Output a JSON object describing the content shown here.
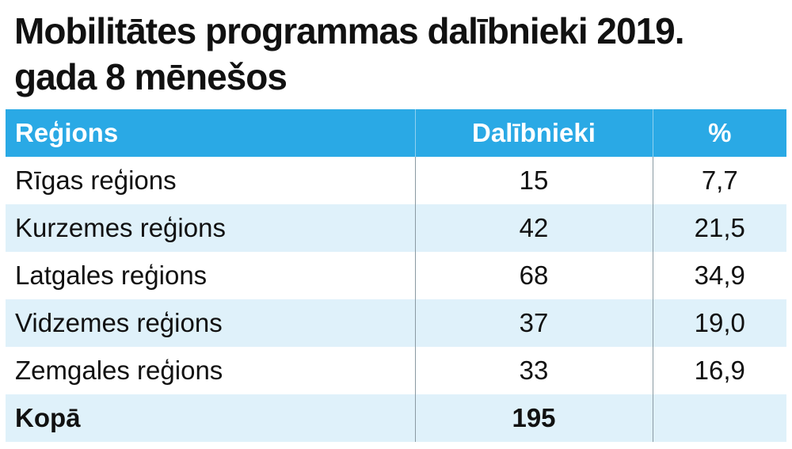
{
  "chart_data": {
    "type": "table",
    "title": "Mobilitātes programmas dalībnieki 2019. gada 8 mēnešos",
    "columns": [
      "Reģions",
      "Dalībnieki",
      "%"
    ],
    "rows": [
      {
        "region": "Rīgas reģions",
        "participants": "15",
        "percent": "7,7"
      },
      {
        "region": "Kurzemes reģions",
        "participants": "42",
        "percent": "21,5"
      },
      {
        "region": "Latgales reģions",
        "participants": "68",
        "percent": "34,9"
      },
      {
        "region": "Vidzemes reģions",
        "participants": "37",
        "percent": "19,0"
      },
      {
        "region": "Zemgales reģions",
        "participants": "33",
        "percent": "16,9"
      }
    ],
    "total": {
      "label": "Kopā",
      "participants": "195",
      "percent": ""
    }
  },
  "colors": {
    "header_bg": "#2aa9e5",
    "header_text": "#ffffff",
    "stripe_bg": "#dff1fa",
    "text": "#111111"
  }
}
